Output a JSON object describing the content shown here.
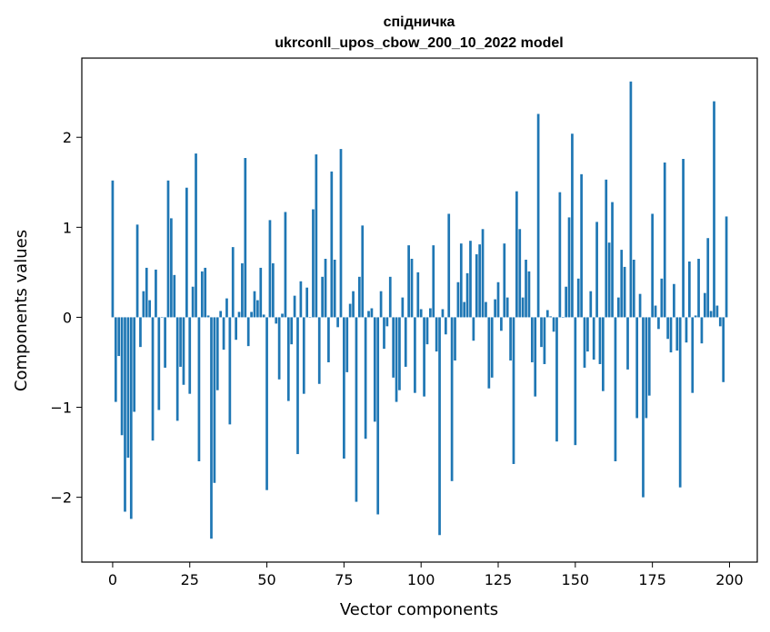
{
  "chart_data": {
    "type": "bar",
    "title": "спідничка",
    "subtitle": "ukrconll_upos_cbow_200_10_2022 model",
    "xlabel": "Vector components",
    "ylabel": "Components values",
    "xlim": [
      -10,
      209
    ],
    "ylim": [
      -2.72,
      2.88
    ],
    "xticks": [
      0,
      25,
      50,
      75,
      100,
      125,
      150,
      175,
      200
    ],
    "xtick_labels": [
      "0",
      "25",
      "50",
      "75",
      "100",
      "125",
      "150",
      "175",
      "200"
    ],
    "yticks": [
      -2,
      -1,
      0,
      1,
      2
    ],
    "ytick_labels": [
      "−2",
      "−1",
      "0",
      "1",
      "2"
    ],
    "color": "#1f77b4",
    "values": [
      1.52,
      -0.94,
      -0.43,
      -1.31,
      -2.16,
      -1.56,
      -2.24,
      -1.05,
      1.03,
      -0.33,
      0.29,
      0.55,
      0.19,
      -1.37,
      0.53,
      -1.03,
      0.0,
      -0.56,
      1.52,
      1.1,
      0.47,
      -1.15,
      -0.55,
      -0.75,
      1.44,
      -0.85,
      0.34,
      1.82,
      -1.6,
      0.51,
      0.55,
      0.02,
      -2.46,
      -1.84,
      -0.81,
      0.07,
      -0.36,
      0.21,
      -1.19,
      0.78,
      -0.25,
      0.06,
      0.6,
      1.77,
      -0.32,
      0.06,
      0.29,
      0.19,
      0.55,
      0.03,
      -1.92,
      1.08,
      0.6,
      -0.07,
      -0.69,
      0.04,
      1.17,
      -0.93,
      -0.3,
      0.24,
      -1.52,
      0.4,
      -0.85,
      0.33,
      0.0,
      1.2,
      1.81,
      -0.74,
      0.45,
      0.65,
      -0.5,
      1.62,
      0.64,
      -0.11,
      1.87,
      -1.57,
      -0.61,
      0.15,
      0.29,
      -2.05,
      0.45,
      1.02,
      -1.35,
      0.07,
      0.1,
      -1.16,
      -2.19,
      0.29,
      -0.35,
      -0.1,
      0.45,
      -0.67,
      -0.94,
      -0.81,
      0.22,
      -0.55,
      0.8,
      0.65,
      -0.84,
      0.5,
      0.09,
      -0.88,
      -0.3,
      0.1,
      0.8,
      -0.38,
      -2.42,
      0.09,
      -0.19,
      1.15,
      -1.82,
      -0.48,
      0.39,
      0.82,
      0.17,
      0.49,
      0.85,
      -0.26,
      0.7,
      0.81,
      0.98,
      0.17,
      -0.79,
      -0.67,
      0.2,
      0.39,
      -0.15,
      0.82,
      0.22,
      -0.48,
      -1.63,
      1.4,
      0.98,
      0.22,
      0.64,
      0.51,
      -0.5,
      -0.88,
      2.26,
      -0.33,
      -0.52,
      0.08,
      0.01,
      -0.16,
      -1.38,
      1.39,
      0.0,
      0.34,
      1.11,
      2.04,
      -1.42,
      0.43,
      1.59,
      -0.56,
      -0.38,
      0.29,
      -0.47,
      1.06,
      -0.52,
      -0.82,
      1.53,
      0.83,
      1.28,
      -1.6,
      0.22,
      0.75,
      0.56,
      -0.58,
      2.62,
      0.64,
      -1.12,
      0.26,
      -2.0,
      -1.12,
      -0.87,
      1.15,
      0.13,
      -0.13,
      0.43,
      1.72,
      -0.24,
      -0.39,
      0.37,
      -0.37,
      -1.89,
      1.76,
      -0.28,
      0.62,
      -0.84,
      0.02,
      0.65,
      -0.29,
      0.27,
      0.88,
      0.07,
      2.4,
      0.13,
      -0.1,
      -0.72,
      1.12
    ]
  }
}
